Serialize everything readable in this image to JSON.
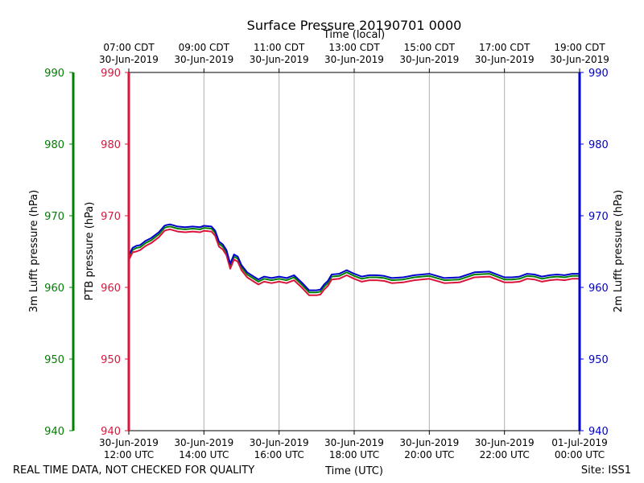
{
  "chart_data": {
    "type": "line",
    "title": "Surface Pressure 20190701 0000",
    "top_axis_label": "Time (local)",
    "bottom_axis_label": "Time (UTC)",
    "footer_left": "REAL TIME DATA, NOT CHECKED FOR QUALITY",
    "footer_right": "Site: ISS1",
    "left_outer_ylabel": "3m Lufft pressure (hPa)",
    "left_inner_ylabel": "PTB pressure (hPa)",
    "right_ylabel": "2m Lufft pressure (hPa)",
    "ylim": [
      940,
      990
    ],
    "yticks": [
      940,
      950,
      960,
      970,
      980,
      990
    ],
    "xlim_hours": [
      0,
      12
    ],
    "grid": "vertical",
    "colors": {
      "lufft3m": "#008000",
      "ptb": "#dc143c",
      "lufft2m": "#0000cd",
      "grid": "#b0b0b0",
      "text": "#000000"
    },
    "x_ticks_utc": [
      {
        "hour": 0,
        "line1": "30-Jun-2019",
        "line2": "12:00 UTC"
      },
      {
        "hour": 2,
        "line1": "30-Jun-2019",
        "line2": "14:00 UTC"
      },
      {
        "hour": 4,
        "line1": "30-Jun-2019",
        "line2": "16:00 UTC"
      },
      {
        "hour": 6,
        "line1": "30-Jun-2019",
        "line2": "18:00 UTC"
      },
      {
        "hour": 8,
        "line1": "30-Jun-2019",
        "line2": "20:00 UTC"
      },
      {
        "hour": 10,
        "line1": "30-Jun-2019",
        "line2": "22:00 UTC"
      },
      {
        "hour": 12,
        "line1": "01-Jul-2019",
        "line2": "00:00 UTC"
      }
    ],
    "x_ticks_local": [
      {
        "hour": 0,
        "line1": "07:00 CDT",
        "line2": "30-Jun-2019"
      },
      {
        "hour": 2,
        "line1": "09:00 CDT",
        "line2": "30-Jun-2019"
      },
      {
        "hour": 4,
        "line1": "11:00 CDT",
        "line2": "30-Jun-2019"
      },
      {
        "hour": 6,
        "line1": "13:00 CDT",
        "line2": "30-Jun-2019"
      },
      {
        "hour": 8,
        "line1": "15:00 CDT",
        "line2": "30-Jun-2019"
      },
      {
        "hour": 10,
        "line1": "17:00 CDT",
        "line2": "30-Jun-2019"
      },
      {
        "hour": 12,
        "line1": "19:00 CDT",
        "line2": "30-Jun-2019"
      }
    ],
    "x": [
      0.0,
      0.1,
      0.2,
      0.3,
      0.45,
      0.6,
      0.8,
      0.95,
      1.0,
      1.1,
      1.3,
      1.5,
      1.7,
      1.9,
      2.0,
      2.2,
      2.3,
      2.4,
      2.5,
      2.6,
      2.7,
      2.8,
      2.9,
      3.0,
      3.15,
      3.3,
      3.45,
      3.6,
      3.8,
      4.0,
      4.2,
      4.4,
      4.6,
      4.8,
      5.0,
      5.1,
      5.2,
      5.3,
      5.4,
      5.6,
      5.8,
      6.0,
      6.2,
      6.4,
      6.6,
      6.8,
      7.0,
      7.3,
      7.6,
      8.0,
      8.4,
      8.8,
      9.2,
      9.6,
      10.0,
      10.2,
      10.4,
      10.6,
      10.8,
      11.0,
      11.2,
      11.4,
      11.6,
      11.8,
      12.0
    ],
    "series": [
      {
        "name": "3m Lufft pressure",
        "key": "lufft3m",
        "values": [
          964.2,
          965.2,
          965.5,
          965.6,
          966.2,
          966.6,
          967.4,
          968.3,
          968.4,
          968.5,
          968.2,
          968.1,
          968.2,
          968.1,
          968.3,
          968.2,
          967.6,
          966.1,
          965.7,
          964.9,
          963.0,
          964.3,
          964.0,
          962.8,
          961.8,
          961.3,
          960.8,
          961.2,
          961.0,
          961.2,
          961.0,
          961.4,
          960.4,
          959.3,
          959.3,
          959.4,
          960.1,
          960.6,
          961.5,
          961.6,
          962.1,
          961.6,
          961.2,
          961.4,
          961.4,
          961.3,
          961.0,
          961.1,
          961.4,
          961.6,
          961.0,
          961.1,
          961.8,
          961.9,
          961.1,
          961.1,
          961.2,
          961.6,
          961.5,
          961.2,
          961.4,
          961.5,
          961.4,
          961.6,
          961.6
        ]
      },
      {
        "name": "PTB pressure",
        "key": "ptb",
        "values": [
          963.8,
          964.9,
          965.0,
          965.2,
          965.8,
          966.2,
          967.0,
          967.9,
          968.0,
          968.1,
          967.8,
          967.7,
          967.8,
          967.7,
          967.9,
          967.8,
          967.2,
          965.7,
          965.3,
          964.5,
          962.6,
          963.9,
          963.6,
          962.4,
          961.4,
          960.9,
          960.4,
          960.8,
          960.6,
          960.8,
          960.6,
          961.0,
          960.0,
          958.9,
          958.9,
          959.0,
          959.7,
          960.2,
          961.1,
          961.2,
          961.7,
          961.2,
          960.8,
          961.0,
          961.0,
          960.9,
          960.6,
          960.7,
          961.0,
          961.2,
          960.6,
          960.7,
          961.4,
          961.5,
          960.7,
          960.7,
          960.8,
          961.2,
          961.1,
          960.8,
          961.0,
          961.1,
          961.0,
          961.2,
          961.2
        ]
      },
      {
        "name": "2m Lufft pressure",
        "key": "lufft2m",
        "values": [
          964.5,
          965.5,
          965.8,
          965.9,
          966.5,
          966.9,
          967.7,
          968.6,
          968.7,
          968.8,
          968.5,
          968.4,
          968.5,
          968.4,
          968.6,
          968.5,
          967.9,
          966.4,
          966.0,
          965.2,
          963.3,
          964.6,
          964.3,
          963.1,
          962.1,
          961.6,
          961.1,
          961.5,
          961.3,
          961.5,
          961.3,
          961.7,
          960.7,
          959.6,
          959.6,
          959.7,
          960.4,
          960.9,
          961.8,
          961.9,
          962.4,
          961.9,
          961.5,
          961.7,
          961.7,
          961.6,
          961.3,
          961.4,
          961.7,
          961.9,
          961.3,
          961.4,
          962.1,
          962.2,
          961.4,
          961.4,
          961.5,
          961.9,
          961.8,
          961.5,
          961.7,
          961.8,
          961.7,
          961.9,
          961.9
        ]
      }
    ]
  }
}
